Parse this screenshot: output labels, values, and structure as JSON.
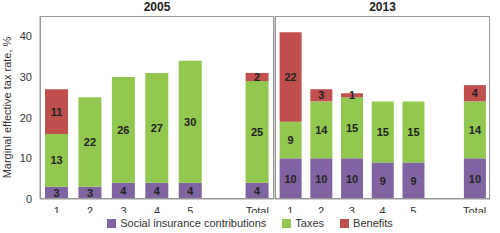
{
  "chart_data": [
    {
      "type": "bar",
      "title": "2005",
      "ylabel": "Marginal effective tax rate, %",
      "stacked": true,
      "data_labels": true,
      "legend": "bottom",
      "categories": [
        "1",
        "2",
        "3",
        "4",
        "5",
        null,
        "Total"
      ],
      "ylim": [
        0,
        45
      ],
      "yticks": [
        0,
        10,
        20,
        30,
        40
      ],
      "series": [
        {
          "name": "Social insurance contributions",
          "color": "#8064A2",
          "values": [
            3,
            3,
            4,
            4,
            4,
            null,
            4
          ]
        },
        {
          "name": "Taxes",
          "color": "#92C84F",
          "values": [
            13,
            22,
            26,
            27,
            30,
            null,
            25
          ]
        },
        {
          "name": "Benefits",
          "color": "#C0504D",
          "values": [
            11,
            0,
            0,
            0,
            0,
            null,
            2
          ]
        }
      ]
    },
    {
      "type": "bar",
      "title": "2013",
      "stacked": true,
      "data_labels": true,
      "tick_labels": "x",
      "categories": [
        "1",
        "2",
        "3",
        "4",
        "5",
        null,
        "Total"
      ],
      "ylim": [
        0,
        45
      ],
      "yticks": [
        0,
        10,
        20,
        30,
        40
      ],
      "series": [
        {
          "name": "Social insurance contributions",
          "color": "#8064A2",
          "values": [
            10,
            10,
            10,
            9,
            9,
            null,
            10
          ]
        },
        {
          "name": "Taxes",
          "color": "#92C84F",
          "values": [
            9,
            14,
            15,
            15,
            15,
            null,
            14
          ]
        },
        {
          "name": "Benefits",
          "color": "#C0504D",
          "values": [
            22,
            3,
            1,
            0,
            0,
            null,
            4
          ]
        }
      ]
    }
  ]
}
